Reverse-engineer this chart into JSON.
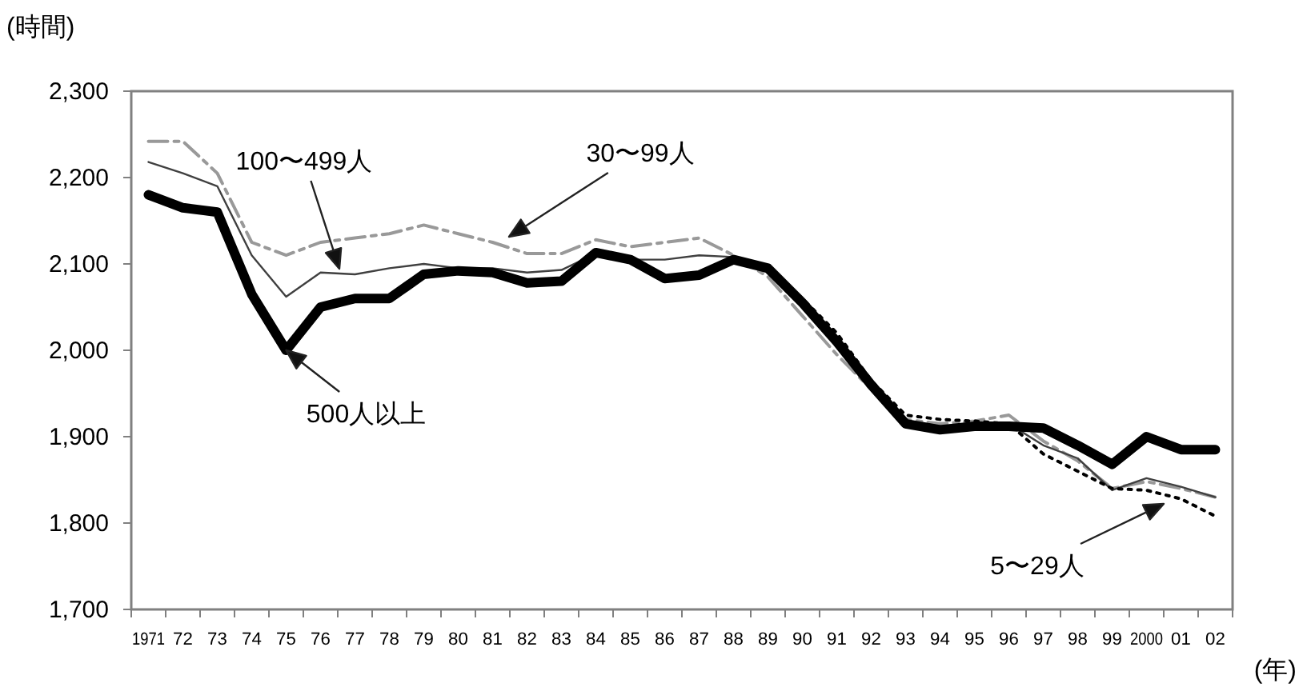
{
  "chart_data": {
    "type": "line",
    "ylabel": "(時間)",
    "xlabel": "(年)",
    "categories": [
      "1971",
      "72",
      "73",
      "74",
      "75",
      "76",
      "77",
      "78",
      "79",
      "80",
      "81",
      "82",
      "83",
      "84",
      "85",
      "86",
      "87",
      "88",
      "89",
      "90",
      "91",
      "92",
      "93",
      "94",
      "95",
      "96",
      "97",
      "98",
      "99",
      "2000",
      "01",
      "02"
    ],
    "series": [
      {
        "color": "#999999",
        "line_style": "dashdot",
        "values": [
          2242,
          2242,
          2205,
          2125,
          2110,
          2125,
          2130,
          2135,
          2145,
          2135,
          2125,
          2112,
          2112,
          2128,
          2120,
          2125,
          2130,
          2110,
          2085,
          2040,
          1995,
          1955,
          1920,
          1915,
          1918,
          1925,
          1895,
          1872,
          1840,
          1848,
          1840,
          1830
        ]
      },
      {
        "color": "#404040",
        "line_style": "solid",
        "values": [
          2218,
          2205,
          2190,
          2110,
          2062,
          2090,
          2088,
          2095,
          2100,
          2095,
          2095,
          2090,
          2093,
          2112,
          2105,
          2105,
          2110,
          2108,
          2090,
          2050,
          2005,
          1955,
          1918,
          1912,
          1915,
          1915,
          1890,
          1875,
          1838,
          1852,
          1842,
          1830
        ]
      },
      {
        "color": "#000000",
        "line_style": "dotted",
        "values": [
          null,
          null,
          null,
          null,
          null,
          null,
          null,
          null,
          null,
          null,
          null,
          null,
          null,
          null,
          null,
          null,
          null,
          2105,
          2095,
          2060,
          2020,
          1965,
          1925,
          1920,
          1918,
          1915,
          1880,
          1860,
          1840,
          1838,
          1828,
          1808
        ]
      },
      {
        "color": "#000000",
        "line_style": "solid",
        "values": [
          2180,
          2165,
          2160,
          2065,
          2000,
          2050,
          2060,
          2060,
          2088,
          2092,
          2090,
          2078,
          2080,
          2113,
          2105,
          2083,
          2087,
          2105,
          2095,
          2055,
          2010,
          1960,
          1915,
          1908,
          1912,
          1912,
          1910,
          1890,
          1868,
          1900,
          1885,
          1885
        ]
      }
    ],
    "ylim": [
      1700,
      2300
    ],
    "yticks": [
      {
        "value": 1700,
        "label": "1,700"
      },
      {
        "value": 1800,
        "label": "1,800"
      },
      {
        "value": 1900,
        "label": "1,900"
      },
      {
        "value": 2000,
        "label": "2,000"
      },
      {
        "value": 2100,
        "label": "2,100"
      },
      {
        "value": 2200,
        "label": "2,200"
      },
      {
        "value": 2300,
        "label": "2,300"
      }
    ],
    "grid": false,
    "annotations": [
      "100〜499人",
      "30〜99人",
      {
        "text": "500人以上",
        "x": "75",
        "y": 2000
      },
      "5〜29人"
    ]
  }
}
